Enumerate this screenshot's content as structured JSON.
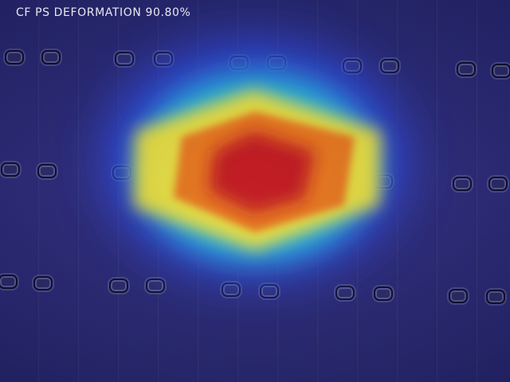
{
  "overlay": {
    "label": "CF PS DEFORMATION 90.80%"
  },
  "colors": {
    "background": "#2a2a78",
    "heat_peak": "#c0141a",
    "heat_mid": "#f2e23a",
    "heat_edge": "#22c4e0",
    "heat_outer": "#2f4ef0"
  }
}
